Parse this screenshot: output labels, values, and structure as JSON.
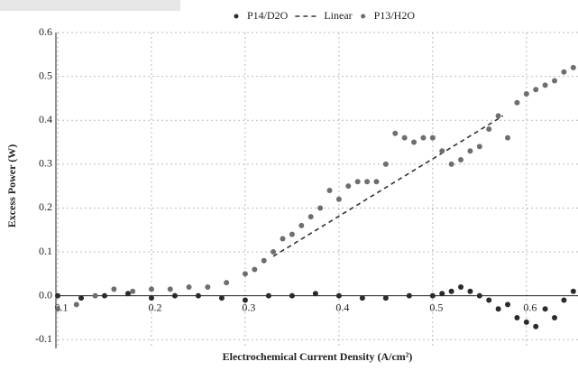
{
  "chart_data": {
    "type": "scatter",
    "xlabel": "Electrochemical Current Density (A/cm²)",
    "ylabel": "Excess Power (W)",
    "xlim": [
      0.1,
      0.655
    ],
    "ylim": [
      -0.12,
      0.6
    ],
    "xticks": [
      0.1,
      0.2,
      0.3,
      0.4,
      0.5,
      0.6
    ],
    "yticks": [
      -0.1,
      {
        "value": 0,
        "label": "0.0"
      },
      0.1,
      0.2,
      0.3,
      0.4,
      0.5,
      0.6
    ],
    "grid": true,
    "legend": "top",
    "series": [
      {
        "name": "P14/D2O",
        "color": "#2b2b2b",
        "x": [
          0.1,
          0.125,
          0.15,
          0.175,
          0.2,
          0.225,
          0.25,
          0.275,
          0.3,
          0.325,
          0.35,
          0.375,
          0.4,
          0.425,
          0.45,
          0.475,
          0.5,
          0.51,
          0.52,
          0.53,
          0.54,
          0.55,
          0.56,
          0.57,
          0.58,
          0.59,
          0.6,
          0.61,
          0.62,
          0.63,
          0.64,
          0.65
        ],
        "values": [
          0.0,
          -0.005,
          0.0,
          0.005,
          -0.005,
          0.0,
          0.0,
          -0.005,
          -0.01,
          0.0,
          0.0,
          0.005,
          0.0,
          -0.005,
          -0.005,
          0.0,
          0.0,
          0.005,
          0.01,
          0.02,
          0.01,
          0.0,
          -0.01,
          -0.03,
          -0.02,
          -0.05,
          -0.06,
          -0.07,
          -0.03,
          -0.05,
          -0.01,
          0.01
        ]
      },
      {
        "name": "Linear",
        "color": "#333333",
        "dashed": true,
        "x": [
          0.33,
          0.575
        ],
        "values": [
          0.09,
          0.41
        ]
      },
      {
        "name": "P13/H2O",
        "color": "#6e6e6e",
        "x": [
          0.1,
          0.12,
          0.14,
          0.16,
          0.18,
          0.2,
          0.22,
          0.24,
          0.26,
          0.28,
          0.3,
          0.31,
          0.32,
          0.33,
          0.34,
          0.35,
          0.36,
          0.37,
          0.38,
          0.39,
          0.4,
          0.41,
          0.42,
          0.43,
          0.44,
          0.45,
          0.46,
          0.47,
          0.48,
          0.49,
          0.5,
          0.51,
          0.52,
          0.53,
          0.54,
          0.55,
          0.56,
          0.57,
          0.58,
          0.59,
          0.6,
          0.61,
          0.62,
          0.63,
          0.64,
          0.65
        ],
        "values": [
          -0.03,
          -0.02,
          0.0,
          0.015,
          0.01,
          0.015,
          0.015,
          0.02,
          0.02,
          0.03,
          0.05,
          0.06,
          0.08,
          0.1,
          0.13,
          0.14,
          0.16,
          0.18,
          0.2,
          0.24,
          0.22,
          0.25,
          0.26,
          0.26,
          0.26,
          0.3,
          0.37,
          0.36,
          0.35,
          0.36,
          0.36,
          0.33,
          0.3,
          0.31,
          0.33,
          0.34,
          0.38,
          0.41,
          0.36,
          0.44,
          0.46,
          0.47,
          0.48,
          0.49,
          0.51,
          0.52
        ]
      }
    ]
  }
}
